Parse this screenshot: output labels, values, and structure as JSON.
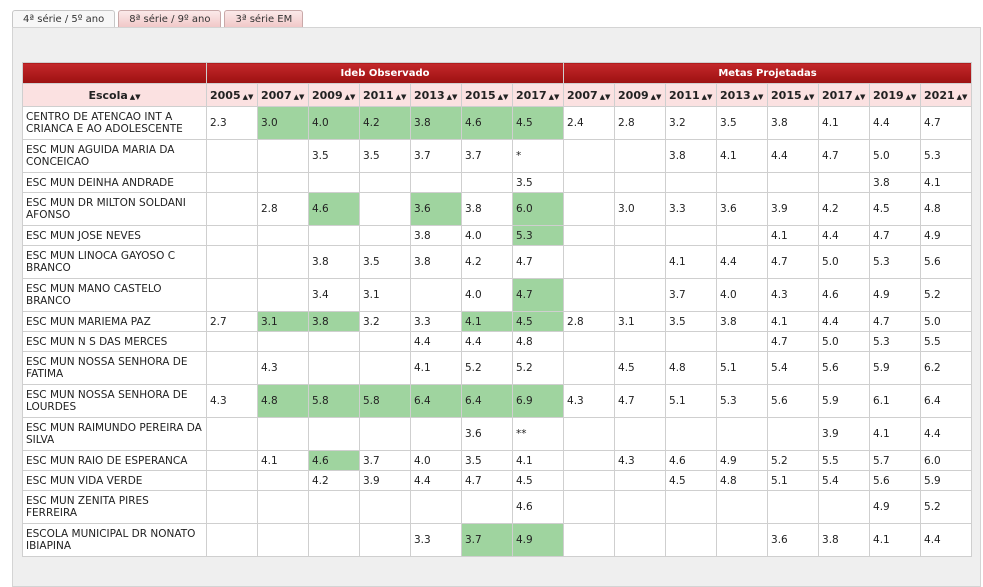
{
  "tabs": [
    "4ª série / 5º ano",
    "8ª série / 9º ano",
    "3ª série EM"
  ],
  "active_tab": 0,
  "table": {
    "group_headers": [
      "Ideb Observado",
      "Metas Projetadas"
    ],
    "escola_header": "Escola",
    "sort_icon": "▲▼",
    "observed_years": [
      "2005",
      "2007",
      "2009",
      "2011",
      "2013",
      "2015",
      "2017"
    ],
    "projected_years": [
      "2007",
      "2009",
      "2011",
      "2013",
      "2015",
      "2017",
      "2019",
      "2021"
    ],
    "highlight_color": "#9fd49f",
    "rows": [
      {
        "escola": "CENTRO DE ATENCAO INT A CRIANCA E AO ADOLESCENTE",
        "observed": [
          "2.3",
          "3.0",
          "4.0",
          "4.2",
          "3.8",
          "4.6",
          "4.5"
        ],
        "highlighted": [
          1,
          2,
          3,
          4,
          5,
          6
        ],
        "projected": [
          "2.4",
          "2.8",
          "3.2",
          "3.5",
          "3.8",
          "4.1",
          "4.4",
          "4.7"
        ]
      },
      {
        "escola": "ESC MUN AGUIDA MARIA DA CONCEICAO",
        "observed": [
          "",
          "",
          "3.5",
          "3.5",
          "3.7",
          "3.7",
          "*"
        ],
        "highlighted": [],
        "projected": [
          "",
          "",
          "3.8",
          "4.1",
          "4.4",
          "4.7",
          "5.0",
          "5.3"
        ]
      },
      {
        "escola": "ESC MUN DEINHA ANDRADE",
        "observed": [
          "",
          "",
          "",
          "",
          "",
          "",
          "3.5"
        ],
        "highlighted": [],
        "projected": [
          "",
          "",
          "",
          "",
          "",
          "",
          "3.8",
          "4.1"
        ]
      },
      {
        "escola": "ESC MUN DR MILTON SOLDANI AFONSO",
        "observed": [
          "",
          "2.8",
          "4.6",
          "",
          "3.6",
          "3.8",
          "6.0"
        ],
        "highlighted": [
          2,
          4,
          6
        ],
        "projected": [
          "",
          "3.0",
          "3.3",
          "3.6",
          "3.9",
          "4.2",
          "4.5",
          "4.8"
        ]
      },
      {
        "escola": "ESC MUN JOSE NEVES",
        "observed": [
          "",
          "",
          "",
          "",
          "3.8",
          "4.0",
          "5.3"
        ],
        "highlighted": [
          6
        ],
        "projected": [
          "",
          "",
          "",
          "",
          "4.1",
          "4.4",
          "4.7",
          "4.9"
        ]
      },
      {
        "escola": "ESC MUN LINOCA GAYOSO C BRANCO",
        "observed": [
          "",
          "",
          "3.8",
          "3.5",
          "3.8",
          "4.2",
          "4.7"
        ],
        "highlighted": [],
        "projected": [
          "",
          "",
          "4.1",
          "4.4",
          "4.7",
          "5.0",
          "5.3",
          "5.6"
        ]
      },
      {
        "escola": "ESC MUN MANO CASTELO BRANCO",
        "observed": [
          "",
          "",
          "3.4",
          "3.1",
          "",
          "4.0",
          "4.7"
        ],
        "highlighted": [
          6
        ],
        "projected": [
          "",
          "",
          "3.7",
          "4.0",
          "4.3",
          "4.6",
          "4.9",
          "5.2"
        ]
      },
      {
        "escola": "ESC MUN MARIEMA PAZ",
        "observed": [
          "2.7",
          "3.1",
          "3.8",
          "3.2",
          "3.3",
          "4.1",
          "4.5"
        ],
        "highlighted": [
          1,
          2,
          5,
          6
        ],
        "projected": [
          "2.8",
          "3.1",
          "3.5",
          "3.8",
          "4.1",
          "4.4",
          "4.7",
          "5.0"
        ]
      },
      {
        "escola": "ESC MUN N S DAS MERCES",
        "observed": [
          "",
          "",
          "",
          "",
          "4.4",
          "4.4",
          "4.8"
        ],
        "highlighted": [],
        "projected": [
          "",
          "",
          "",
          "",
          "4.7",
          "5.0",
          "5.3",
          "5.5"
        ]
      },
      {
        "escola": "ESC MUN NOSSA SENHORA DE FATIMA",
        "observed": [
          "",
          "4.3",
          "",
          "",
          "4.1",
          "5.2",
          "5.2"
        ],
        "highlighted": [],
        "projected": [
          "",
          "4.5",
          "4.8",
          "5.1",
          "5.4",
          "5.6",
          "5.9",
          "6.2"
        ]
      },
      {
        "escola": "ESC MUN NOSSA SENHORA DE LOURDES",
        "observed": [
          "4.3",
          "4.8",
          "5.8",
          "5.8",
          "6.4",
          "6.4",
          "6.9"
        ],
        "highlighted": [
          1,
          2,
          3,
          4,
          5,
          6
        ],
        "projected": [
          "4.3",
          "4.7",
          "5.1",
          "5.3",
          "5.6",
          "5.9",
          "6.1",
          "6.4"
        ]
      },
      {
        "escola": "ESC MUN RAIMUNDO PEREIRA DA SILVA",
        "observed": [
          "",
          "",
          "",
          "",
          "",
          "3.6",
          "**"
        ],
        "highlighted": [],
        "projected": [
          "",
          "",
          "",
          "",
          "",
          "3.9",
          "4.1",
          "4.4"
        ]
      },
      {
        "escola": "ESC MUN RAIO DE ESPERANCA",
        "observed": [
          "",
          "4.1",
          "4.6",
          "3.7",
          "4.0",
          "3.5",
          "4.1"
        ],
        "highlighted": [
          2
        ],
        "projected": [
          "",
          "4.3",
          "4.6",
          "4.9",
          "5.2",
          "5.5",
          "5.7",
          "6.0"
        ]
      },
      {
        "escola": "ESC MUN VIDA VERDE",
        "observed": [
          "",
          "",
          "4.2",
          "3.9",
          "4.4",
          "4.7",
          "4.5"
        ],
        "highlighted": [],
        "projected": [
          "",
          "",
          "4.5",
          "4.8",
          "5.1",
          "5.4",
          "5.6",
          "5.9"
        ]
      },
      {
        "escola": "ESC MUN ZENITA PIRES FERREIRA",
        "observed": [
          "",
          "",
          "",
          "",
          "",
          "",
          "4.6"
        ],
        "highlighted": [],
        "projected": [
          "",
          "",
          "",
          "",
          "",
          "",
          "4.9",
          "5.2"
        ]
      },
      {
        "escola": "ESCOLA MUNICIPAL DR NONATO IBIAPINA",
        "observed": [
          "",
          "",
          "",
          "",
          "3.3",
          "3.7",
          "4.9"
        ],
        "highlighted": [
          5,
          6
        ],
        "projected": [
          "",
          "",
          "",
          "",
          "3.6",
          "3.8",
          "4.1",
          "4.4"
        ]
      }
    ]
  }
}
